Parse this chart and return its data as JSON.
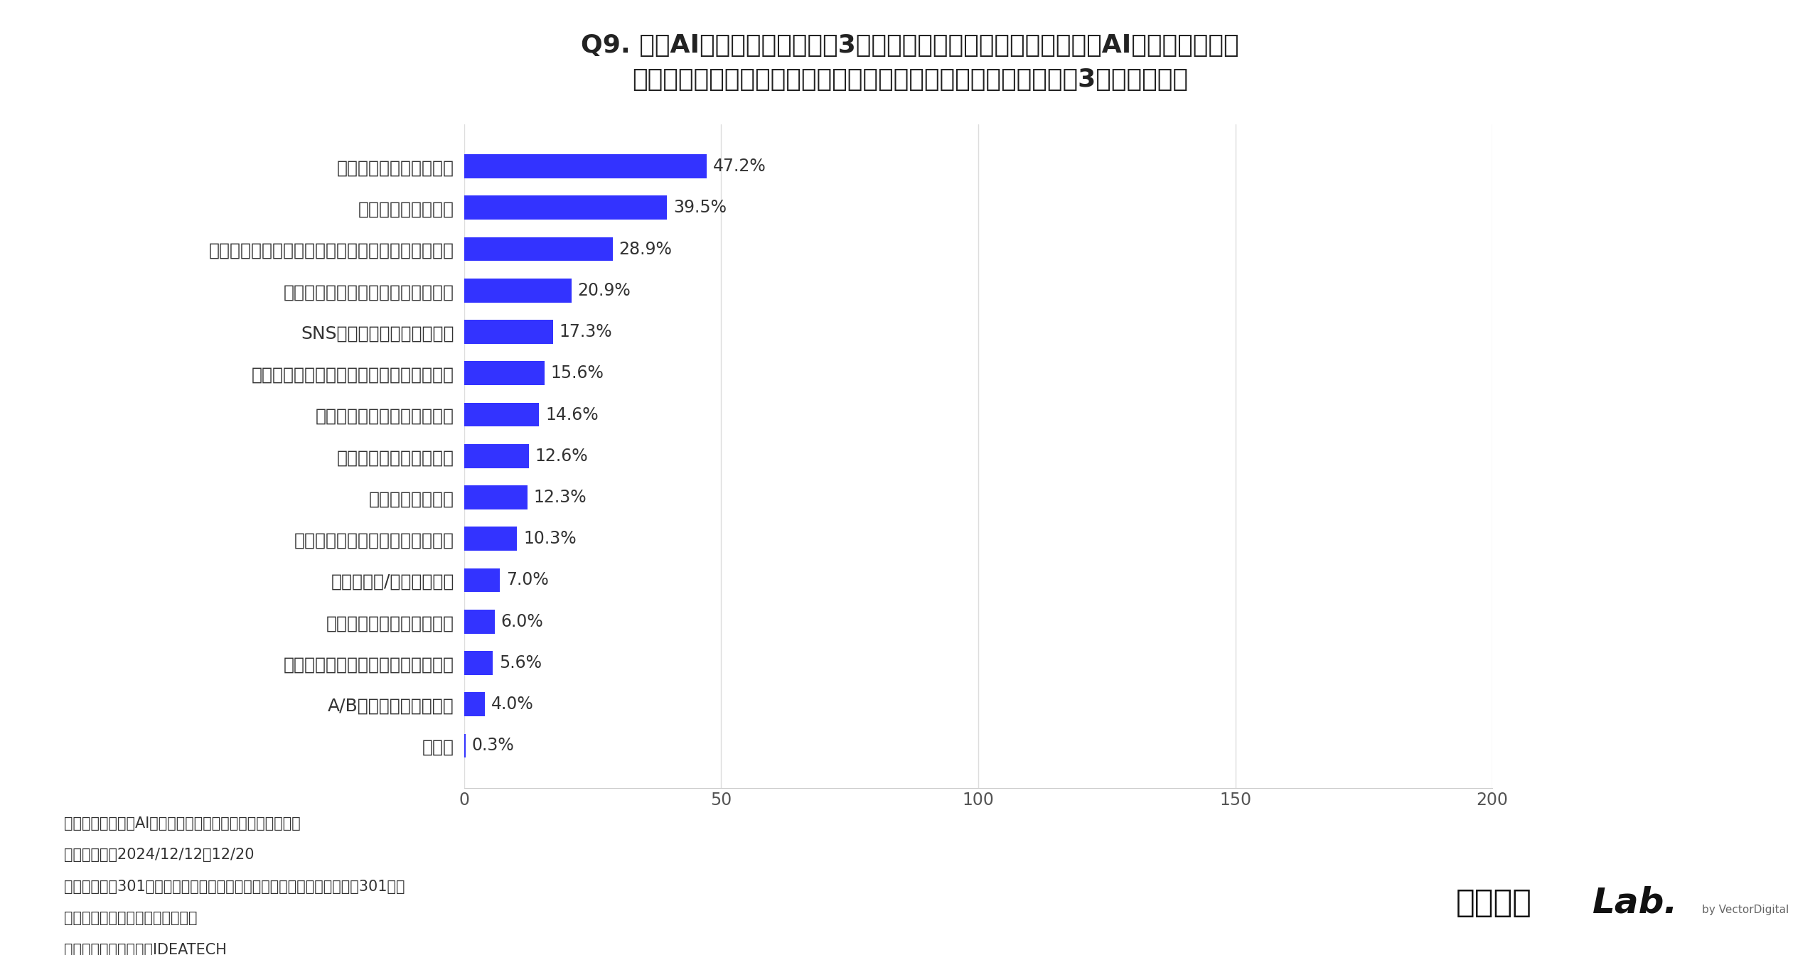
{
  "title_line1": "Q9. 生成AI時代において、今後3年以内にマーケティング部門で生成AIの活用を特に強",
  "title_line2": "化していきたい業務があれば、具体的に教えてください。（上位3つまで回答）",
  "categories": [
    "顧客データの分析と予測",
    "市場調査・競合分析",
    "コンテンツマーケティング（ブログ記事等の作成）",
    "マーケティングレポートの自動生成",
    "SNSコンテンツの企画・制作",
    "カスタマーサポート（チャットボット等）",
    "画像・動画コンテンツの生成",
    "広告コピーの作成・改善",
    "ユーザー行動分析",
    "パーソナライズされたメール配信",
    "わからない/答えられない",
    "特に強化したい業務はない",
    "リスティング広告のキーワード選定",
    "A/Bテストの実施・分析",
    "その他"
  ],
  "values": [
    47.2,
    39.5,
    28.9,
    20.9,
    17.3,
    15.6,
    14.6,
    12.6,
    12.3,
    10.3,
    7.0,
    6.0,
    5.6,
    4.0,
    0.3
  ],
  "bar_color": "#3333ff",
  "background_color": "#ffffff",
  "xlim": [
    0,
    200
  ],
  "xticks": [
    0,
    50,
    100,
    150,
    200
  ],
  "footnote_line1": "【調査内容：生成AIに対するマーケターの意識調査結果】",
  "footnote_line2": "・調査期間：2024/12/12〜12/20",
  "footnote_line3": "・調査対象：301名（事業会社に勤めているマーケティング部の管理職301名）",
  "footnote_line4": "・調査方法：インターネット調査",
  "footnote_line5": "・実施機関：株式会社IDEATECH",
  "logo_part1": "キーマケ",
  "logo_part2": "Lab.",
  "logo_part3": "by VectorDigital",
  "title_fontsize": 26,
  "label_fontsize": 18,
  "tick_fontsize": 17,
  "value_fontsize": 17,
  "footnote_fontsize": 15
}
